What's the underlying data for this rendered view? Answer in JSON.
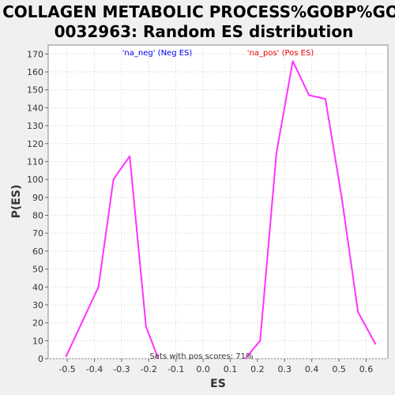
{
  "chart_data": {
    "type": "line",
    "title_lines": [
      "COLLAGEN METABOLIC PROCESS%GOBP%GO:",
      "0032963: Random ES distribution"
    ],
    "xlabel": "ES",
    "ylabel": "P(ES)",
    "xlim": [
      -0.57,
      0.68
    ],
    "ylim": [
      0,
      175
    ],
    "xticks": [
      -0.5,
      -0.4,
      -0.3,
      -0.2,
      -0.1,
      0.0,
      0.1,
      0.2,
      0.3,
      0.4,
      0.5,
      0.6
    ],
    "xtick_labels": [
      "-0.5",
      "-0.4",
      "-0.3",
      "-0.2",
      "-0.1",
      "0.0",
      "0.1",
      "0.2",
      "0.3",
      "0.4",
      "0.5",
      "0.6"
    ],
    "yticks": [
      0,
      10,
      20,
      30,
      40,
      50,
      60,
      70,
      80,
      90,
      100,
      110,
      120,
      130,
      140,
      150,
      160,
      170
    ],
    "grid": true,
    "line_color": "#ff33ff",
    "series": [
      {
        "name": "'na_neg' (Neg ES)",
        "color": "#0000ee",
        "x": [
          -0.505,
          -0.385,
          -0.33,
          -0.27,
          -0.21,
          -0.165
        ],
        "y": [
          1,
          40,
          100,
          113,
          18,
          0
        ]
      },
      {
        "name": "'na_pos' (Pos ES)",
        "color": "#ee0000",
        "x": [
          0.155,
          0.21,
          0.27,
          0.33,
          0.39,
          0.45,
          0.51,
          0.57,
          0.635
        ],
        "y": [
          0,
          10,
          115,
          166,
          147,
          145,
          90,
          26,
          8
        ]
      }
    ],
    "annotation": "Sets with pos scores: 71%"
  }
}
